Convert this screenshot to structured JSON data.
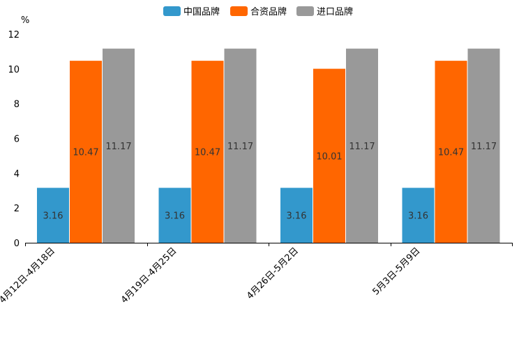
{
  "chart_data": {
    "type": "bar",
    "title": "",
    "xlabel": "",
    "ylabel": "%",
    "ylim": [
      0,
      12
    ],
    "yticks": [
      0,
      2,
      4,
      6,
      8,
      10,
      12
    ],
    "grid": false,
    "legend_position": "top-center",
    "categories": [
      "4月12日-4月18日",
      "4月19日-4月25日",
      "4月26日-5月2日",
      "5月3日-5月9日"
    ],
    "series": [
      {
        "name": "中国品牌",
        "color": "#3398CC",
        "values": [
          3.16,
          3.16,
          3.16,
          3.16
        ]
      },
      {
        "name": "合资品牌",
        "color": "#FF6600",
        "values": [
          10.47,
          10.47,
          10.01,
          10.47
        ]
      },
      {
        "name": "进口品牌",
        "color": "#999999",
        "values": [
          11.17,
          11.17,
          11.17,
          11.17
        ]
      }
    ]
  }
}
